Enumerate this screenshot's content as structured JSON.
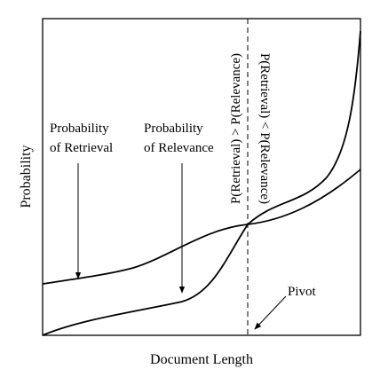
{
  "chart_data": {
    "type": "line",
    "title": "",
    "xlabel": "Document Length",
    "ylabel": "Probability",
    "grid": false,
    "legend": "none",
    "series": [
      {
        "name": "Probability of Retrieval",
        "label_lines": [
          "Probability",
          "of Retrieval"
        ]
      },
      {
        "name": "Probability of Relevance",
        "label_lines": [
          "Probability",
          "of Relevance"
        ]
      }
    ],
    "annotations": {
      "pivot": "Pivot",
      "left_region": "P(Retrieval) > P(Relevance)",
      "right_region": "P(Retrieval) < P(Relevance)"
    }
  }
}
